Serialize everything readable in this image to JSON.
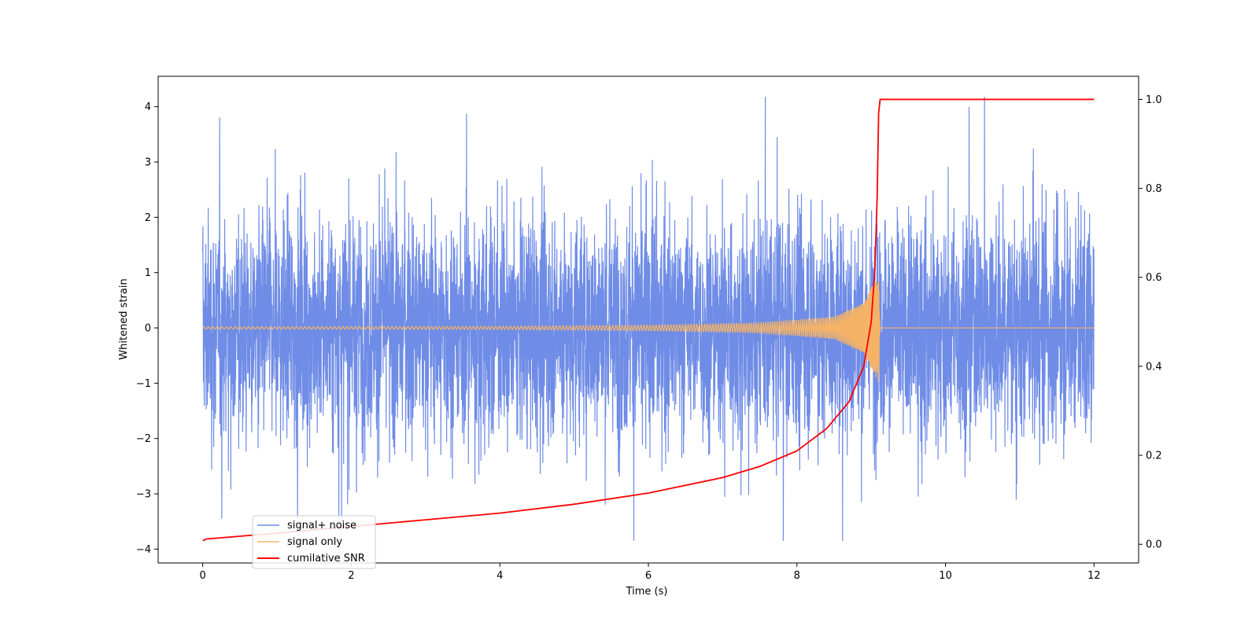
{
  "chart_data": {
    "type": "line",
    "title": "",
    "xlabel": "Time (s)",
    "ylabel": "Whitened strain",
    "y2label": "",
    "xlim": [
      -0.6,
      12.6
    ],
    "ylim": [
      -4.25,
      4.55
    ],
    "y2lim": [
      -0.042,
      1.052
    ],
    "xticks": [
      0,
      2,
      4,
      6,
      8,
      10,
      12
    ],
    "yticks": [
      -4,
      -3,
      -2,
      -1,
      0,
      1,
      2,
      3,
      4
    ],
    "y2ticks": [
      0.0,
      0.2,
      0.4,
      0.6,
      0.8,
      1.0
    ],
    "xtick_labels": [
      "0",
      "2",
      "4",
      "6",
      "8",
      "10",
      "12"
    ],
    "ytick_labels": [
      "−4",
      "−3",
      "−2",
      "−1",
      "0",
      "1",
      "2",
      "3",
      "4"
    ],
    "y2tick_labels": [
      "0.0",
      "0.2",
      "0.4",
      "0.6",
      "0.8",
      "1.0"
    ],
    "grid": false,
    "legend_position": "lower-left",
    "series": [
      {
        "name": "signal+ noise",
        "axis": "left",
        "color": "#6f8ce6",
        "description_values": "noise band roughly -2.5 to 2.5 with spikes up to about 4.2 and down to -3.9 over t=0..12",
        "x_range": [
          0,
          12
        ],
        "typical_amplitude": 2.2,
        "extremes": {
          "max": 4.18,
          "min": -3.85
        }
      },
      {
        "name": "signal only",
        "axis": "left",
        "color": "#f5b367",
        "x_range": [
          0,
          12
        ],
        "chirp_end_time": 9.12,
        "amplitude_points": {
          "x": [
            0,
            4,
            6,
            7.5,
            8.5,
            8.9,
            9.1,
            9.12
          ],
          "y": [
            0.02,
            0.03,
            0.05,
            0.09,
            0.2,
            0.45,
            1.0,
            0.0
          ]
        }
      },
      {
        "name": "cumilative SNR",
        "axis": "right",
        "color": "#ff0000",
        "x": [
          0,
          0.05,
          1,
          2,
          3,
          4,
          5,
          6,
          7,
          7.5,
          8,
          8.4,
          8.7,
          8.9,
          9.0,
          9.05,
          9.08,
          9.1,
          9.12,
          9.15,
          12
        ],
        "y": [
          0.008,
          0.012,
          0.025,
          0.04,
          0.055,
          0.07,
          0.09,
          0.115,
          0.15,
          0.175,
          0.21,
          0.26,
          0.32,
          0.4,
          0.5,
          0.62,
          0.78,
          0.97,
          1.0,
          1.0,
          1.0
        ]
      }
    ]
  },
  "legend": {
    "items": [
      {
        "label": "signal+ noise",
        "color": "#6f8ce6"
      },
      {
        "label": "signal only",
        "color": "#f5b367"
      },
      {
        "label": "cumilative SNR",
        "color": "#ff0000"
      }
    ]
  }
}
